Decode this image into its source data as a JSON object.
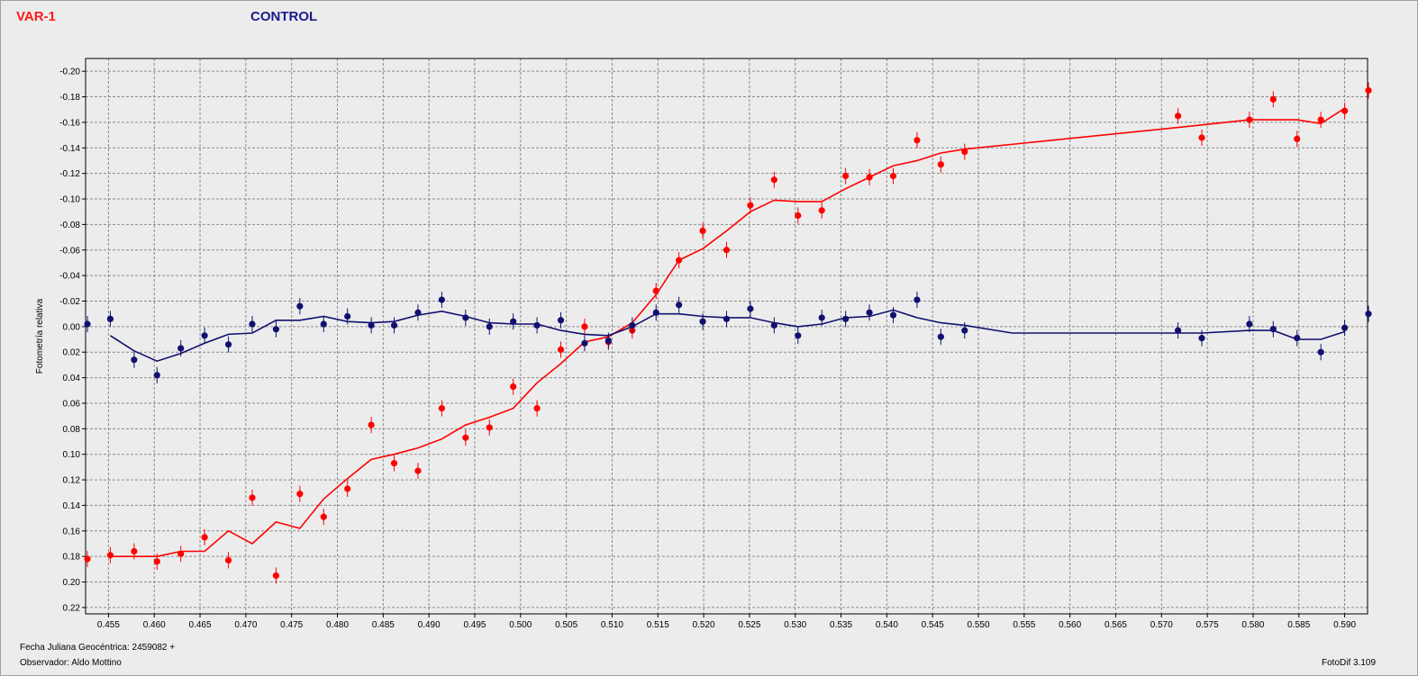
{
  "header": {
    "var_label": "VAR-1",
    "control_label": "CONTROL"
  },
  "footer": {
    "jd_label": "Fecha Juliana Geocéntrica: 2459082 +",
    "observer_label": "Observador: Aldo Mottino",
    "software_label": "FotoDif 3.109"
  },
  "colors": {
    "var": "#ff0000",
    "control": "#101070",
    "grid": "#8a8a8a",
    "plot_bg": "#ececec"
  },
  "chart_data": {
    "type": "scatter",
    "ylabel": "Fotometría relativa",
    "xlabel": "",
    "xlim": [
      0.4525,
      0.5925
    ],
    "ylim": [
      -0.21,
      0.225
    ],
    "y_inverted": true,
    "grid": true,
    "x_ticks": [
      "0.455",
      "0.460",
      "0.465",
      "0.470",
      "0.475",
      "0.480",
      "0.485",
      "0.490",
      "0.495",
      "0.500",
      "0.505",
      "0.510",
      "0.515",
      "0.520",
      "0.525",
      "0.530",
      "0.535",
      "0.540",
      "0.545",
      "0.550",
      "0.555",
      "0.560",
      "0.565",
      "0.570",
      "0.575",
      "0.580",
      "0.585",
      "0.590"
    ],
    "y_ticks": [
      "-0.20",
      "-0.18",
      "-0.16",
      "-0.14",
      "-0.12",
      "-0.10",
      "-0.08",
      "-0.06",
      "-0.04",
      "-0.02",
      "0.00",
      "0.02",
      "0.04",
      "0.06",
      "0.08",
      "0.10",
      "0.12",
      "0.14",
      "0.16",
      "0.18",
      "0.20",
      "0.22"
    ],
    "series": [
      {
        "name": "VAR-1",
        "points": [
          [
            0.4527,
            0.182
          ],
          [
            0.4552,
            0.179
          ],
          [
            0.4578,
            0.176
          ],
          [
            0.4603,
            0.184
          ],
          [
            0.4629,
            0.178
          ],
          [
            0.4655,
            0.165
          ],
          [
            0.4681,
            0.183
          ],
          [
            0.4707,
            0.134
          ],
          [
            0.4733,
            0.195
          ],
          [
            0.4759,
            0.131
          ],
          [
            0.4785,
            0.149
          ],
          [
            0.4811,
            0.127
          ],
          [
            0.4837,
            0.077
          ],
          [
            0.4862,
            0.107
          ],
          [
            0.4888,
            0.113
          ],
          [
            0.4914,
            0.064
          ],
          [
            0.494,
            0.087
          ],
          [
            0.4966,
            0.079
          ],
          [
            0.4992,
            0.047
          ],
          [
            0.5018,
            0.064
          ],
          [
            0.5044,
            0.018
          ],
          [
            0.507,
            0.0
          ],
          [
            0.5096,
            0.012
          ],
          [
            0.5122,
            0.003
          ],
          [
            0.5148,
            -0.028
          ],
          [
            0.5173,
            -0.052
          ],
          [
            0.5199,
            -0.075
          ],
          [
            0.5225,
            -0.06
          ],
          [
            0.5251,
            -0.095
          ],
          [
            0.5277,
            -0.115
          ],
          [
            0.5303,
            -0.087
          ],
          [
            0.5329,
            -0.091
          ],
          [
            0.5355,
            -0.118
          ],
          [
            0.5381,
            -0.117
          ],
          [
            0.5407,
            -0.118
          ],
          [
            0.5433,
            -0.146
          ],
          [
            0.5459,
            -0.127
          ],
          [
            0.5485,
            -0.137
          ],
          [
            0.5718,
            -0.165
          ],
          [
            0.5744,
            -0.148
          ],
          [
            0.5796,
            -0.162
          ],
          [
            0.5822,
            -0.178
          ],
          [
            0.5848,
            -0.147
          ],
          [
            0.5874,
            -0.162
          ],
          [
            0.59,
            -0.169
          ],
          [
            0.5926,
            -0.185
          ]
        ],
        "trend": [
          [
            0.4552,
            0.18
          ],
          [
            0.4578,
            0.18
          ],
          [
            0.4603,
            0.18
          ],
          [
            0.4629,
            0.176
          ],
          [
            0.4655,
            0.176
          ],
          [
            0.4681,
            0.16
          ],
          [
            0.4707,
            0.17
          ],
          [
            0.4733,
            0.153
          ],
          [
            0.4759,
            0.158
          ],
          [
            0.4785,
            0.135
          ],
          [
            0.4811,
            0.119
          ],
          [
            0.4837,
            0.104
          ],
          [
            0.4862,
            0.1
          ],
          [
            0.4888,
            0.095
          ],
          [
            0.4914,
            0.088
          ],
          [
            0.494,
            0.077
          ],
          [
            0.4966,
            0.071
          ],
          [
            0.4992,
            0.064
          ],
          [
            0.5018,
            0.044
          ],
          [
            0.5044,
            0.029
          ],
          [
            0.507,
            0.012
          ],
          [
            0.5096,
            0.008
          ],
          [
            0.5122,
            -0.003
          ],
          [
            0.5148,
            -0.025
          ],
          [
            0.5173,
            -0.052
          ],
          [
            0.5199,
            -0.061
          ],
          [
            0.5225,
            -0.075
          ],
          [
            0.5251,
            -0.09
          ],
          [
            0.5277,
            -0.099
          ],
          [
            0.5303,
            -0.098
          ],
          [
            0.5329,
            -0.098
          ],
          [
            0.5355,
            -0.108
          ],
          [
            0.5381,
            -0.117
          ],
          [
            0.5407,
            -0.126
          ],
          [
            0.5433,
            -0.13
          ],
          [
            0.5459,
            -0.136
          ],
          [
            0.5485,
            -0.139
          ],
          [
            0.5718,
            -0.156
          ],
          [
            0.5744,
            -0.158
          ],
          [
            0.5796,
            -0.162
          ],
          [
            0.5822,
            -0.162
          ],
          [
            0.5848,
            -0.162
          ],
          [
            0.5874,
            -0.159
          ],
          [
            0.59,
            -0.171
          ]
        ]
      },
      {
        "name": "CONTROL",
        "points": [
          [
            0.4527,
            -0.002
          ],
          [
            0.4552,
            -0.006
          ],
          [
            0.4578,
            0.026
          ],
          [
            0.4603,
            0.038
          ],
          [
            0.4629,
            0.017
          ],
          [
            0.4655,
            0.007
          ],
          [
            0.4681,
            0.014
          ],
          [
            0.4707,
            -0.002
          ],
          [
            0.4733,
            0.002
          ],
          [
            0.4759,
            -0.016
          ],
          [
            0.4785,
            -0.002
          ],
          [
            0.4811,
            -0.008
          ],
          [
            0.4837,
            -0.001
          ],
          [
            0.4862,
            -0.001
          ],
          [
            0.4888,
            -0.011
          ],
          [
            0.4914,
            -0.021
          ],
          [
            0.494,
            -0.007
          ],
          [
            0.4966,
            0.0
          ],
          [
            0.4992,
            -0.004
          ],
          [
            0.5018,
            -0.001
          ],
          [
            0.5044,
            -0.005
          ],
          [
            0.507,
            0.013
          ],
          [
            0.5096,
            0.011
          ],
          [
            0.5122,
            -0.001
          ],
          [
            0.5148,
            -0.011
          ],
          [
            0.5173,
            -0.017
          ],
          [
            0.5199,
            -0.004
          ],
          [
            0.5225,
            -0.006
          ],
          [
            0.5251,
            -0.014
          ],
          [
            0.5277,
            -0.001
          ],
          [
            0.5303,
            0.007
          ],
          [
            0.5329,
            -0.007
          ],
          [
            0.5355,
            -0.006
          ],
          [
            0.5381,
            -0.011
          ],
          [
            0.5407,
            -0.009
          ],
          [
            0.5433,
            -0.021
          ],
          [
            0.5459,
            0.008
          ],
          [
            0.5485,
            0.003
          ],
          [
            0.5718,
            0.003
          ],
          [
            0.5744,
            0.009
          ],
          [
            0.5796,
            -0.002
          ],
          [
            0.5822,
            0.002
          ],
          [
            0.5848,
            0.009
          ],
          [
            0.5874,
            0.02
          ],
          [
            0.59,
            0.001
          ],
          [
            0.5926,
            -0.01
          ]
        ],
        "trend": [
          [
            0.4552,
            0.007
          ],
          [
            0.4578,
            0.019
          ],
          [
            0.4603,
            0.027
          ],
          [
            0.4629,
            0.021
          ],
          [
            0.4655,
            0.013
          ],
          [
            0.4681,
            0.006
          ],
          [
            0.4707,
            0.005
          ],
          [
            0.4733,
            -0.005
          ],
          [
            0.4759,
            -0.005
          ],
          [
            0.4785,
            -0.008
          ],
          [
            0.4811,
            -0.004
          ],
          [
            0.4837,
            -0.003
          ],
          [
            0.4862,
            -0.004
          ],
          [
            0.4888,
            -0.009
          ],
          [
            0.4914,
            -0.012
          ],
          [
            0.494,
            -0.008
          ],
          [
            0.4966,
            -0.003
          ],
          [
            0.4992,
            -0.002
          ],
          [
            0.5018,
            -0.002
          ],
          [
            0.5044,
            0.003
          ],
          [
            0.507,
            0.006
          ],
          [
            0.5096,
            0.007
          ],
          [
            0.5122,
            0.0
          ],
          [
            0.5148,
            -0.01
          ],
          [
            0.5173,
            -0.01
          ],
          [
            0.5199,
            -0.008
          ],
          [
            0.5225,
            -0.007
          ],
          [
            0.5251,
            -0.007
          ],
          [
            0.5277,
            -0.003
          ],
          [
            0.5303,
            0.0
          ],
          [
            0.5329,
            -0.002
          ],
          [
            0.5355,
            -0.007
          ],
          [
            0.5381,
            -0.008
          ],
          [
            0.5407,
            -0.013
          ],
          [
            0.5433,
            -0.007
          ],
          [
            0.5459,
            -0.003
          ],
          [
            0.5485,
            -0.001
          ],
          [
            0.5537,
            0.005
          ],
          [
            0.5718,
            0.005
          ],
          [
            0.5744,
            0.005
          ],
          [
            0.5796,
            0.003
          ],
          [
            0.5822,
            0.003
          ],
          [
            0.5848,
            0.01
          ],
          [
            0.5874,
            0.01
          ],
          [
            0.59,
            0.004
          ]
        ]
      }
    ]
  }
}
